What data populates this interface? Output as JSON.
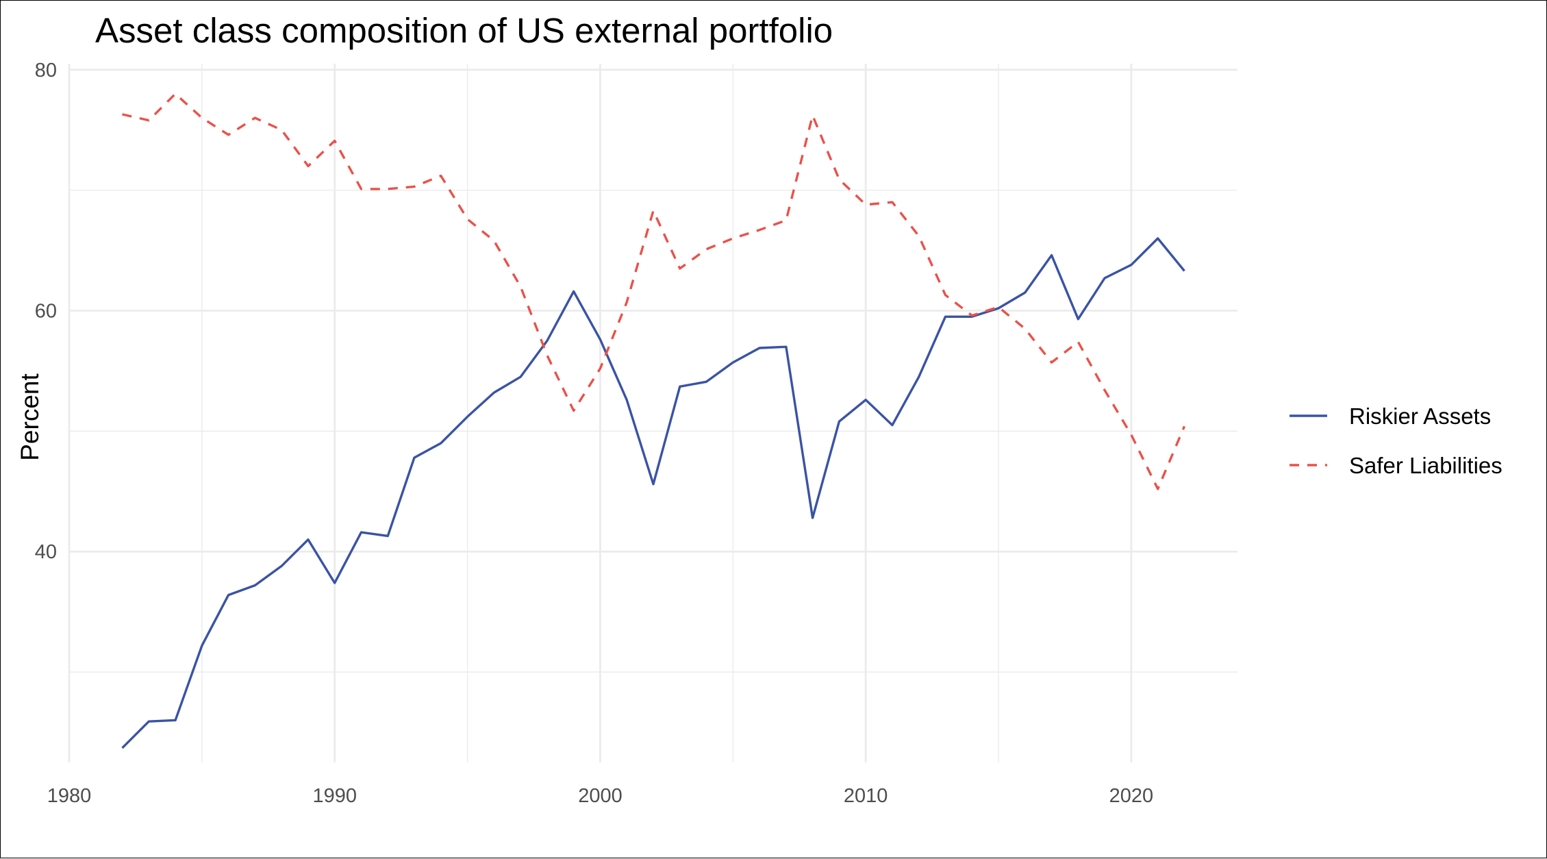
{
  "chart_data": {
    "type": "line",
    "title": "Asset class composition of US external portfolio",
    "xlabel": "",
    "ylabel": "Percent",
    "xlim": [
      1980,
      2024
    ],
    "ylim": [
      22.5,
      80.5
    ],
    "x_ticks": [
      1980,
      1990,
      2000,
      2010,
      2020
    ],
    "y_ticks": [
      40,
      60,
      80
    ],
    "x_tick_labels": [
      "1980",
      "1990",
      "2000",
      "2010",
      "2020"
    ],
    "y_tick_labels": [
      "40",
      "60",
      "80"
    ],
    "grid": true,
    "legend_position": "right",
    "x": [
      1982,
      1983,
      1984,
      1985,
      1986,
      1987,
      1988,
      1989,
      1990,
      1991,
      1992,
      1993,
      1994,
      1995,
      1996,
      1997,
      1998,
      1999,
      2000,
      2001,
      2002,
      2003,
      2004,
      2005,
      2006,
      2007,
      2008,
      2009,
      2010,
      2011,
      2012,
      2013,
      2014,
      2015,
      2016,
      2017,
      2018,
      2019,
      2020,
      2021,
      2022
    ],
    "series": [
      {
        "name": "Riskier Assets",
        "color": "#3a53a4",
        "dash": "solid",
        "values": [
          23.7,
          25.9,
          26.0,
          32.2,
          36.4,
          37.2,
          38.8,
          41.0,
          37.4,
          41.6,
          41.3,
          47.8,
          49.0,
          51.2,
          53.2,
          54.5,
          57.5,
          61.6,
          57.6,
          52.6,
          45.6,
          53.7,
          54.1,
          55.7,
          56.9,
          57.0,
          42.8,
          50.8,
          52.6,
          50.5,
          54.5,
          59.5,
          59.5,
          60.2,
          61.5,
          64.6,
          59.3,
          62.7,
          63.8,
          66.0,
          63.3
        ]
      },
      {
        "name": "Safer Liabilities",
        "color": "#e9524a",
        "dash": "dashed",
        "values": [
          76.3,
          75.8,
          78.0,
          76.0,
          74.6,
          76.0,
          75.0,
          72.0,
          74.1,
          70.1,
          70.1,
          70.3,
          71.2,
          67.6,
          65.8,
          62.0,
          56.3,
          51.7,
          55.2,
          60.7,
          68.3,
          63.5,
          65.1,
          66.0,
          66.7,
          67.5,
          76.2,
          70.9,
          68.8,
          69.0,
          66.2,
          61.3,
          59.6,
          60.3,
          58.5,
          55.7,
          57.4,
          53.4,
          49.7,
          45.2,
          50.4
        ]
      }
    ]
  }
}
